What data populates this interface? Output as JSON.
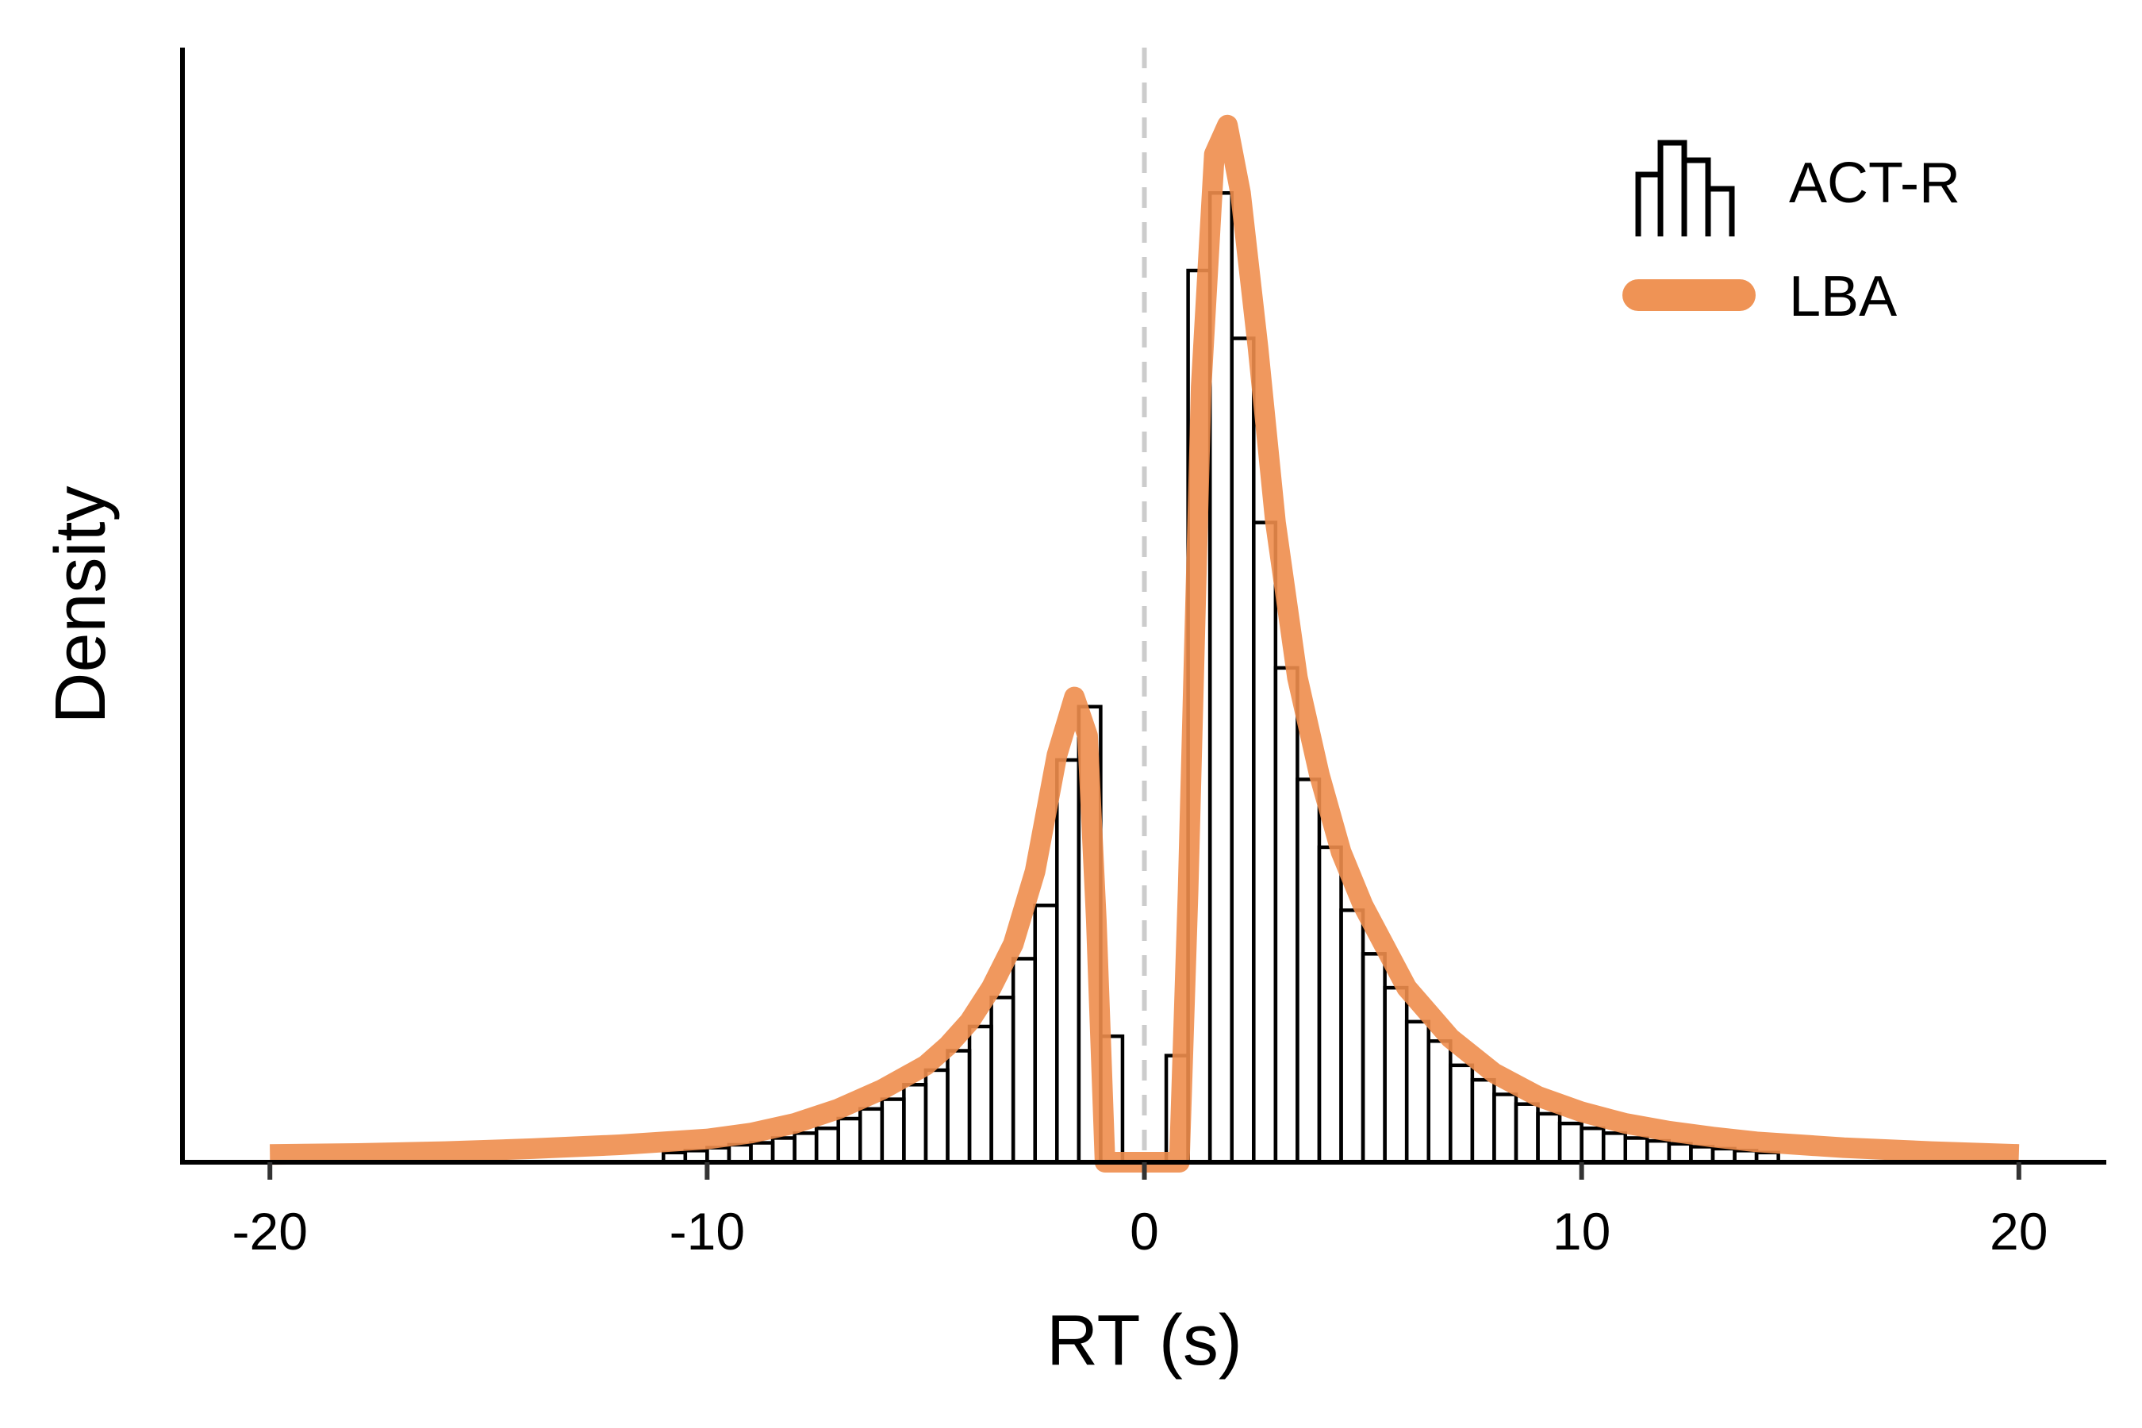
{
  "chart_data": {
    "type": "histogram",
    "xlabel": "RT (s)",
    "ylabel": "Density",
    "xlim": [
      -22,
      22
    ],
    "ylim": [
      0,
      1.15
    ],
    "xticks": [
      -20,
      -10,
      0,
      10,
      20
    ],
    "xtick_labels": [
      "-20",
      "-10",
      "0",
      "10",
      "20"
    ],
    "y_tick_labels_shown": false,
    "reference_line": {
      "x": 0,
      "style": "dashed",
      "color": "#cccccc"
    },
    "legend": {
      "position": "top-right",
      "entries": [
        {
          "label": "ACT-R",
          "kind": "histogram-step"
        },
        {
          "label": "LBA",
          "kind": "line"
        }
      ]
    },
    "series": [
      {
        "name": "ACT-R",
        "kind": "histogram",
        "color": "#000000",
        "bin_width": 0.5,
        "bins": [
          [
            -11.0,
            0.01
          ],
          [
            -10.5,
            0.012
          ],
          [
            -10.0,
            0.015
          ],
          [
            -9.5,
            0.018
          ],
          [
            -9.0,
            0.02
          ],
          [
            -8.5,
            0.025
          ],
          [
            -8.0,
            0.03
          ],
          [
            -7.5,
            0.035
          ],
          [
            -7.0,
            0.045
          ],
          [
            -6.5,
            0.055
          ],
          [
            -6.0,
            0.065
          ],
          [
            -5.5,
            0.08
          ],
          [
            -5.0,
            0.095
          ],
          [
            -4.5,
            0.115
          ],
          [
            -4.0,
            0.14
          ],
          [
            -3.5,
            0.17
          ],
          [
            -3.0,
            0.21
          ],
          [
            -2.5,
            0.265
          ],
          [
            -2.0,
            0.415
          ],
          [
            -1.5,
            0.47
          ],
          [
            -1.0,
            0.13
          ],
          [
            0.5,
            0.11
          ],
          [
            1.0,
            0.92
          ],
          [
            1.5,
            1.0
          ],
          [
            2.0,
            0.85
          ],
          [
            2.5,
            0.66
          ],
          [
            3.0,
            0.51
          ],
          [
            3.5,
            0.395
          ],
          [
            4.0,
            0.325
          ],
          [
            4.5,
            0.26
          ],
          [
            5.0,
            0.215
          ],
          [
            5.5,
            0.18
          ],
          [
            6.0,
            0.145
          ],
          [
            6.5,
            0.125
          ],
          [
            7.0,
            0.1
          ],
          [
            7.5,
            0.085
          ],
          [
            8.0,
            0.07
          ],
          [
            8.5,
            0.06
          ],
          [
            9.0,
            0.05
          ],
          [
            9.5,
            0.04
          ],
          [
            10.0,
            0.035
          ],
          [
            10.5,
            0.03
          ],
          [
            11.0,
            0.025
          ],
          [
            11.5,
            0.022
          ],
          [
            12.0,
            0.019
          ],
          [
            12.5,
            0.016
          ],
          [
            13.0,
            0.014
          ],
          [
            13.5,
            0.012
          ],
          [
            14.0,
            0.01
          ]
        ]
      },
      {
        "name": "LBA",
        "kind": "line",
        "color": "#ee8d4c",
        "points": [
          [
            -20,
            0.008
          ],
          [
            -18,
            0.009
          ],
          [
            -16,
            0.011
          ],
          [
            -14,
            0.014
          ],
          [
            -12,
            0.018
          ],
          [
            -10,
            0.024
          ],
          [
            -9,
            0.03
          ],
          [
            -8,
            0.04
          ],
          [
            -7,
            0.055
          ],
          [
            -6,
            0.075
          ],
          [
            -5,
            0.1
          ],
          [
            -4.5,
            0.12
          ],
          [
            -4,
            0.145
          ],
          [
            -3.5,
            0.18
          ],
          [
            -3,
            0.225
          ],
          [
            -2.5,
            0.3
          ],
          [
            -2,
            0.42
          ],
          [
            -1.6,
            0.48
          ],
          [
            -1.3,
            0.44
          ],
          [
            -1.1,
            0.25
          ],
          [
            -0.9,
            0.0
          ],
          [
            0.0,
            0.0
          ],
          [
            0.8,
            0.0
          ],
          [
            1.0,
            0.28
          ],
          [
            1.3,
            0.8
          ],
          [
            1.6,
            1.04
          ],
          [
            1.9,
            1.07
          ],
          [
            2.2,
            1.0
          ],
          [
            2.6,
            0.84
          ],
          [
            3.0,
            0.66
          ],
          [
            3.5,
            0.5
          ],
          [
            4.0,
            0.4
          ],
          [
            4.5,
            0.32
          ],
          [
            5.0,
            0.265
          ],
          [
            6.0,
            0.18
          ],
          [
            7.0,
            0.128
          ],
          [
            8.0,
            0.092
          ],
          [
            9.0,
            0.068
          ],
          [
            10.0,
            0.052
          ],
          [
            11.0,
            0.04
          ],
          [
            12.0,
            0.032
          ],
          [
            13.0,
            0.026
          ],
          [
            14.0,
            0.021
          ],
          [
            16.0,
            0.015
          ],
          [
            18.0,
            0.011
          ],
          [
            20.0,
            0.008
          ]
        ]
      }
    ]
  }
}
